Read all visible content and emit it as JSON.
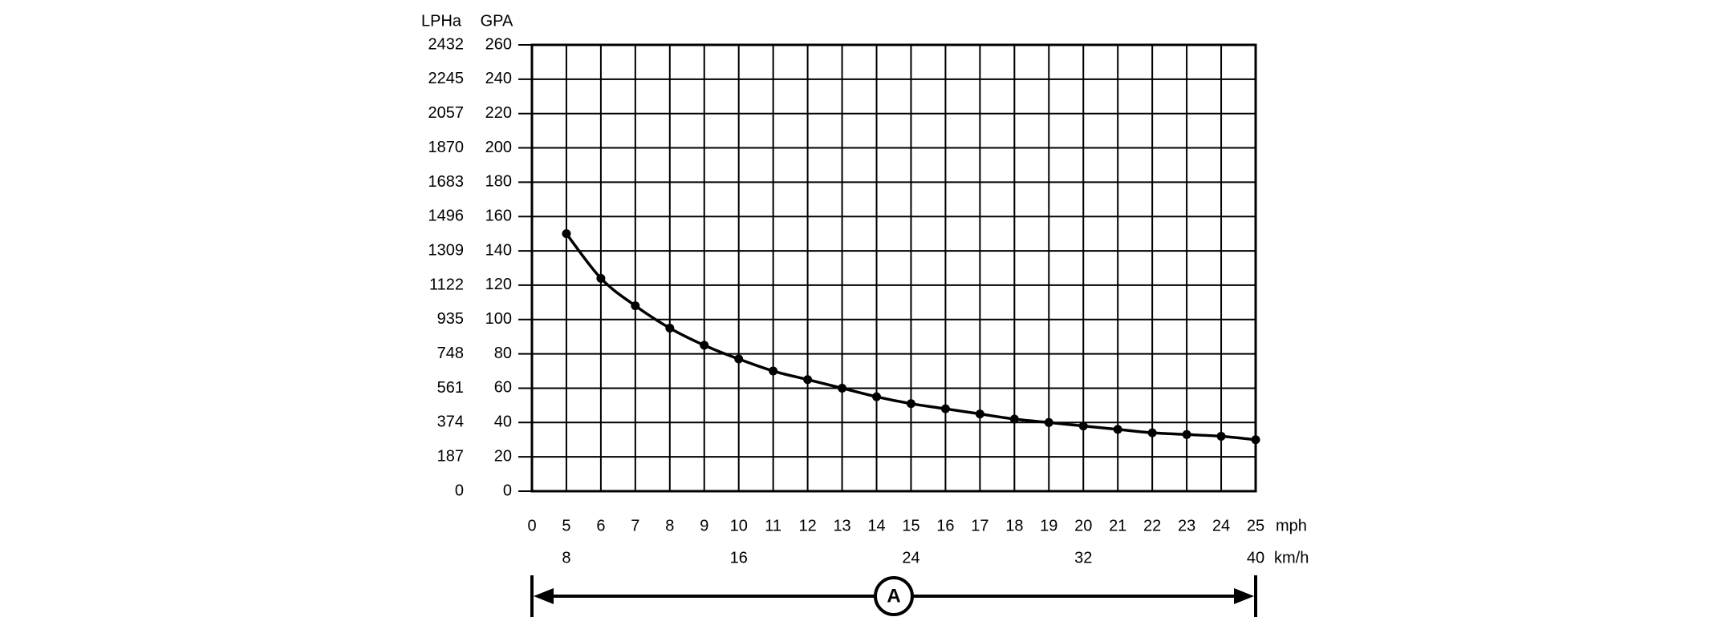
{
  "chart_data": {
    "type": "line",
    "y_label": "GPA",
    "y2_label": "LPHa",
    "x_label": "mph",
    "x2_label": "km/h",
    "annotation": "A",
    "categories": [
      "0",
      "5",
      "6",
      "7",
      "8",
      "9",
      "10",
      "11",
      "12",
      "13",
      "14",
      "15",
      "16",
      "17",
      "18",
      "19",
      "20",
      "21",
      "22",
      "23",
      "24",
      "25"
    ],
    "x2ticks": [
      8,
      16,
      24,
      32,
      40
    ],
    "series": [
      {
        "name": "GPA",
        "color": "#000000",
        "values": [
          null,
          150,
          124,
          108,
          95,
          85,
          77,
          70,
          65,
          60,
          55,
          51,
          48,
          45,
          42,
          40,
          38,
          36,
          34,
          33,
          32,
          30
        ]
      }
    ],
    "ylim": [
      0,
      260
    ],
    "yticks": [
      0,
      20,
      40,
      60,
      80,
      100,
      120,
      140,
      160,
      180,
      200,
      220,
      240,
      260
    ],
    "y2lim": [
      0,
      2432
    ],
    "y2ticks": [
      0,
      187,
      374,
      561,
      748,
      935,
      1122,
      1309,
      1496,
      1683,
      1870,
      2057,
      2245,
      2432
    ],
    "grid": true
  }
}
